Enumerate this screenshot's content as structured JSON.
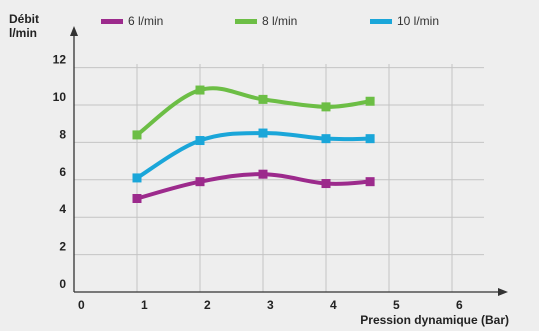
{
  "chart_data": {
    "type": "line",
    "title": "",
    "ylabel_line1": "Débit",
    "ylabel_line2": "l/min",
    "xlabel": "Pression dynamique (Bar)",
    "xlim": [
      0,
      6.5
    ],
    "ylim": [
      0,
      12
    ],
    "x_ticks": [
      "0",
      "1",
      "2",
      "3",
      "4",
      "5",
      "6"
    ],
    "y_ticks": [
      "0",
      "2",
      "4",
      "6",
      "8",
      "10",
      "12"
    ],
    "x": [
      1,
      2,
      3,
      4,
      4.7
    ],
    "grid": true,
    "legend_position": "top",
    "series": [
      {
        "name": "6 l/min",
        "color": "#9c2a8c",
        "values": [
          5.0,
          5.9,
          6.3,
          5.8,
          5.9
        ]
      },
      {
        "name": "8 l/min",
        "color": "#6cbe45",
        "values": [
          8.4,
          10.8,
          10.3,
          9.9,
          10.2
        ]
      },
      {
        "name": "10 l/min",
        "color": "#1aa6d9",
        "values": [
          6.1,
          8.1,
          8.5,
          8.2,
          8.2
        ]
      }
    ]
  }
}
